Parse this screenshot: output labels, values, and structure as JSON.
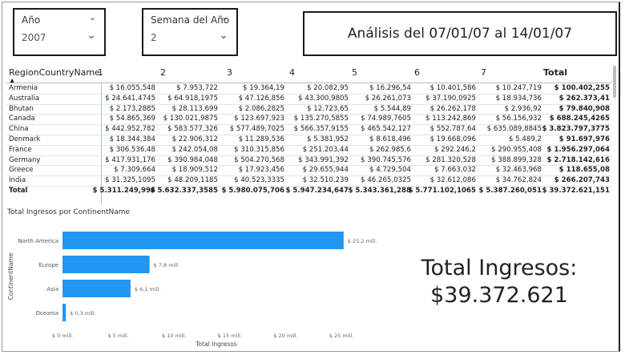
{
  "slicers": {
    "year": {
      "label": "Año",
      "value": "2007"
    },
    "week": {
      "label": "Semana del Año",
      "value": "2"
    }
  },
  "title": "Análisis del 07/01/07 al 14/01/07",
  "table": {
    "columns": [
      "RegionCountryName",
      "1",
      "2",
      "3",
      "4",
      "5",
      "6",
      "7",
      "Total"
    ],
    "rows": [
      {
        "name": "Armenia",
        "values": [
          "$ 16.055,548",
          "$ 7.953,722",
          "$ 19.364,19",
          "$ 20.082,95",
          "$ 16.296,54",
          "$ 10.401,586",
          "$ 10.247,719",
          "$ 100.402,255"
        ]
      },
      {
        "name": "Australia",
        "values": [
          "$ 24.641,4745",
          "$ 64.918,1975",
          "$ 47.126,856",
          "$ 43.300,9805",
          "$ 26.261,073",
          "$ 37.190,0925",
          "$ 18.934,736",
          "$ 262.373,41"
        ]
      },
      {
        "name": "Bhutan",
        "values": [
          "$ 2.173,2885",
          "$ 28.113,699",
          "$ 2.086,2825",
          "$ 12.723,65",
          "$ 5.544,89",
          "$ 26.262,178",
          "$ 2.936,92",
          "$ 79.840,908"
        ]
      },
      {
        "name": "Canada",
        "values": [
          "$ 54.865,369",
          "$ 130.021,9875",
          "$ 123.697,923",
          "$ 135.270,5855",
          "$ 74.989,7605",
          "$ 113.242,869",
          "$ 56.156,932",
          "$ 688.245,4265"
        ]
      },
      {
        "name": "China",
        "values": [
          "$ 442.952,782",
          "$ 583.577,326",
          "$ 577.489,7025",
          "$ 566.357,9155",
          "$ 465.542,127",
          "$ 552.787,64",
          "$ 635.089,8845",
          "$ 3.823.797,3775"
        ]
      },
      {
        "name": "Denmark",
        "values": [
          "$ 18.344,384",
          "$ 22.906,312",
          "$ 11.289,536",
          "$ 5.381,952",
          "$ 8.618,496",
          "$ 19.668,096",
          "$ 5.489,2",
          "$ 91.697,976"
        ]
      },
      {
        "name": "France",
        "values": [
          "$ 306.536,48",
          "$ 242.054,08",
          "$ 310.315,856",
          "$ 251.203,44",
          "$ 262.985,6",
          "$ 292.246,2",
          "$ 290.955,408",
          "$ 1.956.297,064"
        ]
      },
      {
        "name": "Germany",
        "values": [
          "$ 417.931,176",
          "$ 390.984,048",
          "$ 504.270,568",
          "$ 343.991,392",
          "$ 390.745,576",
          "$ 281.320,528",
          "$ 388.899,328",
          "$ 2.718.142,616"
        ]
      },
      {
        "name": "Greece",
        "values": [
          "$ 7.309,664",
          "$ 18.909,512",
          "$ 17.923,456",
          "$ 29.655,944",
          "$ 4.729,504",
          "$ 7.663,032",
          "$ 32.463,968",
          "$ 118.655,08"
        ]
      },
      {
        "name": "India",
        "values": [
          "$ 31.325,1095",
          "$ 48.209,1185",
          "$ 40.523,3335",
          "$ 32.510,239",
          "$ 46.265,0325",
          "$ 32.612,086",
          "$ 34.762,824",
          "$ 266.207,743"
        ]
      }
    ],
    "total": {
      "name": "Total",
      "values": [
        "$ 5.311.249,994",
        "$ 5.632.337,3585",
        "$ 5.980.075,706",
        "$ 5.947.234,647",
        "$ 5.343.361,288",
        "$ 5.771.102,1065",
        "$ 5.387.260,051",
        "$ 39.372.621,151"
      ]
    }
  },
  "chart_data": {
    "type": "bar",
    "orientation": "horizontal",
    "title": "Total Ingresos por ContinentName",
    "xlabel": "Total Ingresos",
    "ylabel": "ContinentName",
    "categories": [
      "North America",
      "Europe",
      "Asia",
      "Oceania"
    ],
    "values": [
      25.2,
      7.8,
      6.1,
      0.3
    ],
    "data_labels": [
      "$ 25,2 mill.",
      "$ 7,8 mill.",
      "$ 6,1 mill.",
      "$ 0,3 mill."
    ],
    "xticks": [
      0,
      5,
      10,
      15,
      20,
      25
    ],
    "xtick_labels": [
      "$ 0 mill.",
      "$ 5 mill.",
      "$ 10 mill.",
      "$ 15 mill.",
      "$ 20 mill.",
      "$ 25 mill."
    ],
    "xlim": [
      0,
      26
    ],
    "bar_color": "#2196f3",
    "grid": false
  },
  "kpi": {
    "line1": "Total Ingresos:",
    "line2": "$39.372.621"
  },
  "colors": {
    "accent": "#2196f3",
    "border": "#1a1a1a"
  }
}
